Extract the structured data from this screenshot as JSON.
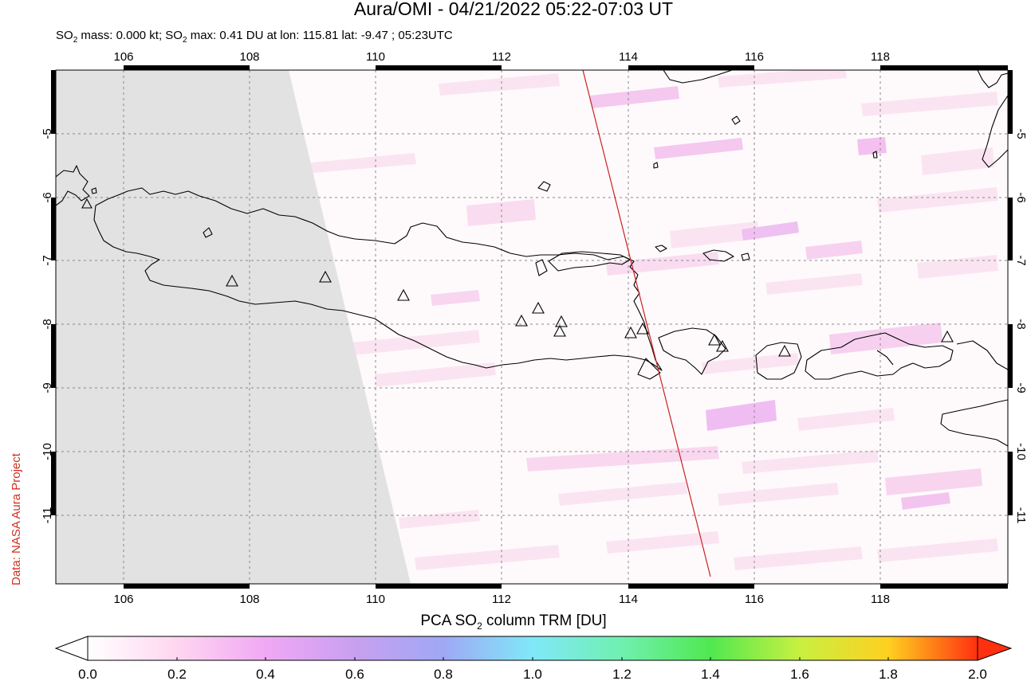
{
  "title": "Aura/OMI - 04/21/2022 05:22-07:03 UT",
  "subtitle": {
    "part1": "SO",
    "sub1": "2",
    "part2": " mass: 0.000 kt; SO",
    "sub2": "2",
    "part3": " max: 0.41 DU at lon: 115.81 lat: -9.47 ; 05:23UTC"
  },
  "credit": "Data: NASA Aura Project",
  "colorbar": {
    "title_pre": "PCA SO",
    "title_sub": "2",
    "title_post": " column TRM [DU]",
    "ticks": [
      "0.0",
      "0.2",
      "0.4",
      "0.6",
      "0.8",
      "1.0",
      "1.2",
      "1.4",
      "1.6",
      "1.8",
      "2.0"
    ],
    "colors": [
      "#ffffff",
      "#ffd6f0",
      "#f0a8f5",
      "#c8a0f0",
      "#9fa8f5",
      "#80e8f8",
      "#70f0b0",
      "#50e850",
      "#c8f040",
      "#ffd020",
      "#ff3010"
    ]
  },
  "map": {
    "lon_ticks": [
      "106",
      "108",
      "110",
      "112",
      "114",
      "116",
      "118"
    ],
    "lat_ticks": [
      "-5",
      "-6",
      "-7",
      "-8",
      "-9",
      "-10",
      "-11"
    ],
    "colors": {
      "no_data": "#e2e2e2",
      "track": "#cc2020",
      "coast": "#000000",
      "grid": "#888888"
    }
  },
  "volcano_icon": "triangle-icon"
}
